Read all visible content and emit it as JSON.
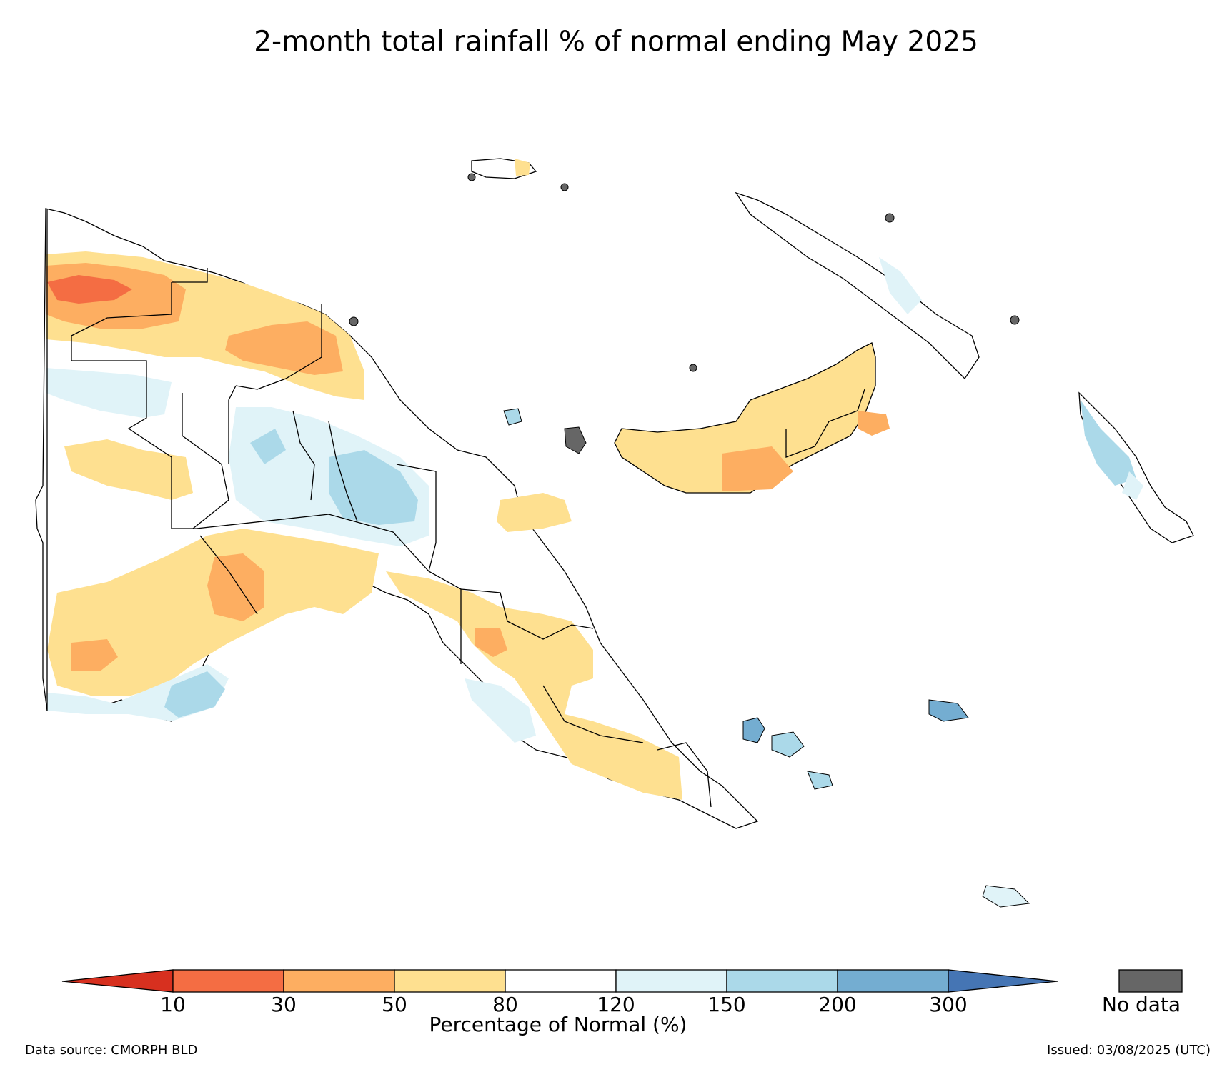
{
  "title": "2-month total rainfall % of normal ending May 2025",
  "legend": {
    "ticks": [
      "10",
      "30",
      "50",
      "80",
      "120",
      "150",
      "200",
      "300"
    ],
    "label": "Percentage of Normal (%)",
    "bins": [
      {
        "range": "<10",
        "color": "#d7301f"
      },
      {
        "range": "10-30",
        "color": "#f46d43"
      },
      {
        "range": "30-50",
        "color": "#fdae61"
      },
      {
        "range": "50-80",
        "color": "#fee090"
      },
      {
        "range": "80-120",
        "color": "#ffffff"
      },
      {
        "range": "120-150",
        "color": "#e0f3f8"
      },
      {
        "range": "150-200",
        "color": "#abd9e9"
      },
      {
        "range": "200-300",
        "color": "#74add1"
      },
      {
        "range": ">300",
        "color": "#4575b4"
      }
    ],
    "nodata_label": "No data",
    "nodata_color": "#666666"
  },
  "footer": {
    "source": "Data source: CMORPH BLD",
    "issued": "Issued: 03/08/2025 (UTC)"
  }
}
